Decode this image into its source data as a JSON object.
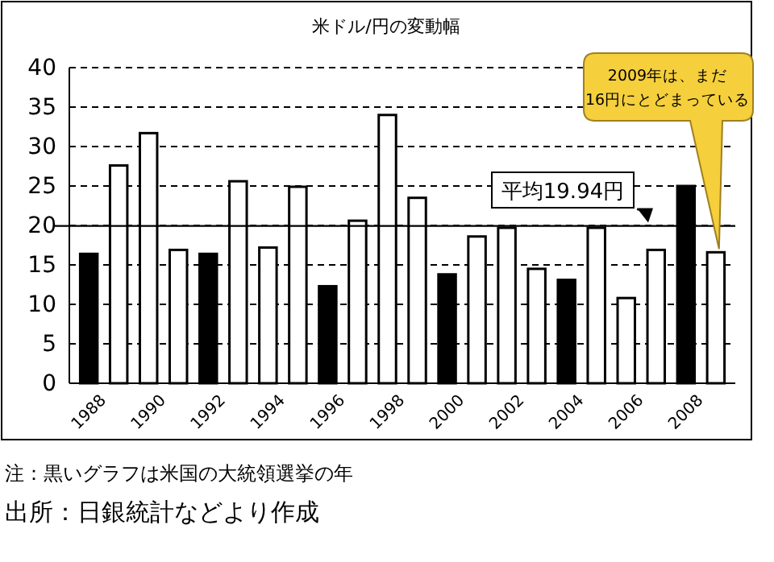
{
  "chart_data": {
    "type": "bar",
    "title": "米ドル/円の変動幅",
    "categories": [
      "1988",
      null,
      "1990",
      null,
      "1992",
      null,
      "1994",
      null,
      "1996",
      null,
      "1998",
      null,
      "2000",
      null,
      "2002",
      null,
      "2004",
      null,
      "2006",
      null,
      "2008",
      null
    ],
    "values": [
      16.4,
      27.6,
      31.7,
      16.9,
      16.4,
      25.6,
      17.2,
      24.9,
      12.3,
      20.6,
      34.0,
      23.5,
      13.8,
      18.6,
      19.7,
      14.5,
      13.1,
      19.7,
      10.8,
      16.9,
      25.0,
      16.6
    ],
    "colors": [
      "#000000",
      "#ffffff",
      "#ffffff",
      "#ffffff",
      "#000000",
      "#ffffff",
      "#ffffff",
      "#ffffff",
      "#000000",
      "#ffffff",
      "#ffffff",
      "#ffffff",
      "#000000",
      "#ffffff",
      "#ffffff",
      "#ffffff",
      "#000000",
      "#ffffff",
      "#ffffff",
      "#ffffff",
      "#000000",
      "#ffffff"
    ],
    "ylim": [
      0,
      40
    ],
    "yticks": [
      0,
      5,
      10,
      15,
      20,
      25,
      30,
      35,
      40
    ],
    "grid": "y",
    "ref_lines": [
      {
        "axis": "y",
        "value": 19.94,
        "label": "平均19.94円",
        "color": "#000000",
        "line_style": "solid"
      }
    ],
    "annotations": [
      "2009年は、まだ\n16円にとどまっている",
      "注：黒いグラフは米国の大統領選挙の年",
      "出所：日銀統計などより作成"
    ]
  }
}
